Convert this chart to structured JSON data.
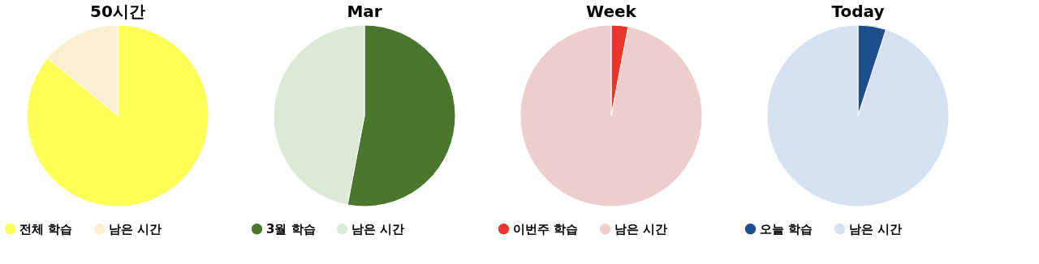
{
  "chart_data": [
    {
      "type": "pie",
      "title": "50시간",
      "categories": [
        "전체 학습",
        "남은 시간"
      ],
      "values": [
        86,
        14
      ],
      "colors": [
        "#ffff55",
        "#fbefd0"
      ],
      "legend": "bottom"
    },
    {
      "type": "pie",
      "title": "Mar",
      "categories": [
        "3월 학습",
        "남은 시간"
      ],
      "values": [
        53,
        47
      ],
      "colors": [
        "#4a772d",
        "#dce9d5"
      ],
      "legend": "bottom"
    },
    {
      "type": "pie",
      "title": "Week",
      "categories": [
        "이번주 학습",
        "남은 시간"
      ],
      "values": [
        3,
        97
      ],
      "colors": [
        "#e8372a",
        "#edcdcd"
      ],
      "legend": "bottom"
    },
    {
      "type": "pie",
      "title": "Today",
      "categories": [
        "오늘 학습",
        "남은 시간"
      ],
      "values": [
        5,
        95
      ],
      "colors": [
        "#1f4e8c",
        "#d3e1f0"
      ],
      "legend": "bottom"
    }
  ]
}
